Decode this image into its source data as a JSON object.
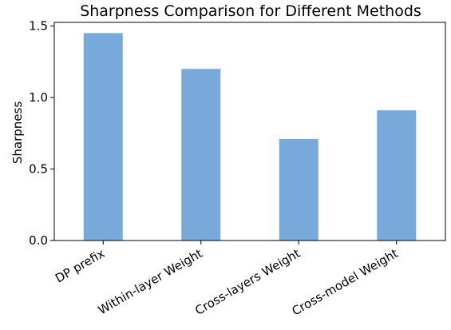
{
  "chart_data": {
    "type": "bar",
    "title": "Sharpness Comparison for Different Methods",
    "xlabel": "",
    "ylabel": "Sharpness",
    "categories": [
      "DP prefix",
      "Within-layer Weight",
      "Cross-layers Weight",
      "Cross-model Weight"
    ],
    "values": [
      1.45,
      1.2,
      0.71,
      0.91
    ],
    "ylim": [
      0,
      1.525
    ],
    "yticks": [
      0.0,
      0.5,
      1.0,
      1.5
    ],
    "ytick_labels": [
      "0.0",
      "0.5",
      "1.0",
      "1.5"
    ],
    "grid": false,
    "legend": "none",
    "bar_color": "#77aadb"
  }
}
